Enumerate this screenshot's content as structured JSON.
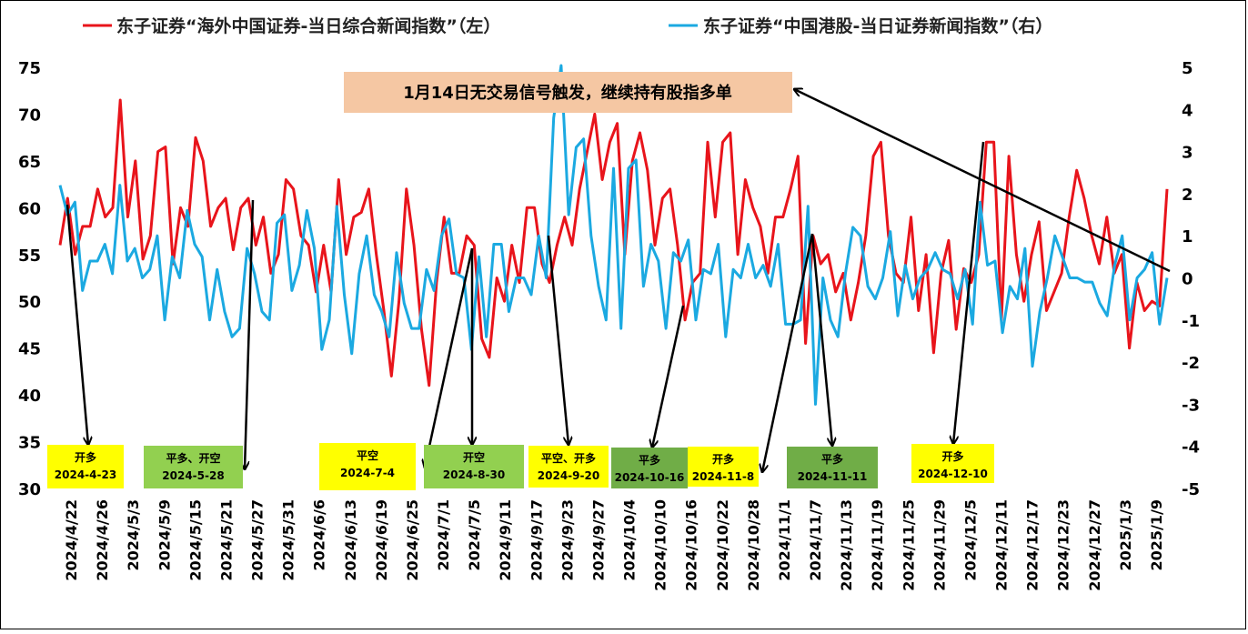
{
  "chart_data": {
    "type": "line",
    "legend": {
      "placement": "top",
      "entries": [
        {
          "label": "东子证券“海外中国证券-当日综合新闻指数”（左）",
          "color": "#e8141b"
        },
        {
          "label": "东子证券“中国港股-当日证券新闻指数”（右）",
          "color": "#1ba9e1"
        }
      ]
    },
    "y_left": {
      "min": 30,
      "max": 75,
      "ticks": [
        "30",
        "35",
        "40",
        "45",
        "50",
        "55",
        "60",
        "65",
        "70",
        "75"
      ]
    },
    "y_right": {
      "min": -5,
      "max": 5,
      "ticks": [
        "-5",
        "-4",
        "-3",
        "-2",
        "-1",
        "0",
        "1",
        "2",
        "3",
        "4",
        "5"
      ]
    },
    "x_labels": [
      "2024/4/22",
      "2024/4/26",
      "2024/5/3",
      "2024/5/9",
      "2024/5/15",
      "2024/5/21",
      "2024/5/27",
      "2024/5/31",
      "2024/6/6",
      "2024/6/13",
      "2024/6/19",
      "2024/6/25",
      "2024/7/1",
      "2024/7/5",
      "2024/9/11",
      "2024/9/17",
      "2024/9/23",
      "2024/9/27",
      "2024/10/4",
      "2024/10/10",
      "2024/10/16",
      "2024/10/22",
      "2024/10/28",
      "2024/11/1",
      "2024/11/7",
      "2024/11/13",
      "2024/11/19",
      "2024/11/25",
      "2024/11/29",
      "2024/12/5",
      "2024/12/11",
      "2024/12/17",
      "2024/12/23",
      "2024/12/27",
      "2025/1/3",
      "2025/1/9"
    ],
    "series": [
      {
        "name": "东子证券“海外中国证券-当日综合新闻指数”（左）",
        "axis": "left",
        "color": "#e8141b",
        "values": [
          56,
          61,
          55,
          58,
          58,
          62,
          59,
          60,
          71.5,
          59,
          65,
          54.5,
          57,
          66,
          66.5,
          54,
          60,
          58,
          67.5,
          65,
          58,
          60,
          61,
          55.5,
          60,
          61,
          56,
          59,
          53,
          55,
          63,
          62,
          57,
          56,
          51,
          56,
          51,
          63,
          55,
          59,
          59.5,
          62,
          55,
          49,
          42,
          50,
          62,
          56,
          47,
          41,
          52,
          59,
          53,
          53,
          57,
          56,
          46,
          44,
          52.5,
          50,
          56,
          52,
          60,
          60,
          54,
          52,
          56,
          59,
          56,
          62,
          66,
          70,
          63,
          67,
          69,
          55,
          65,
          68,
          64,
          56,
          61,
          62,
          56,
          48,
          52,
          53,
          67,
          59,
          67,
          68,
          55,
          63,
          60,
          58,
          53,
          59,
          59,
          62,
          65.5,
          45.5,
          57,
          54,
          55,
          51,
          53,
          48,
          52,
          57,
          65.5,
          67,
          57,
          53,
          52,
          59,
          49,
          55,
          44.5,
          53,
          56.5,
          47,
          53.5,
          52,
          55,
          67,
          67,
          48,
          65.5,
          55,
          50,
          55,
          58.5,
          49,
          51,
          53,
          59,
          64,
          61,
          57,
          54,
          59,
          53,
          55,
          45,
          52,
          49,
          50,
          49.5,
          62
        ]
      },
      {
        "name": "东子证券“中国港股-当日证券新闻指数”（右）",
        "axis": "right",
        "color": "#1ba9e1",
        "values": [
          2.2,
          1.5,
          1.8,
          -0.3,
          0.4,
          0.4,
          0.8,
          0.1,
          2.2,
          0.4,
          0.7,
          0,
          0.2,
          1,
          -1,
          0.5,
          0,
          1.6,
          0.8,
          0.5,
          -1,
          0.2,
          -0.8,
          -1.4,
          -1.2,
          0.7,
          0.1,
          -0.8,
          -1,
          1.3,
          1.5,
          -0.3,
          0.3,
          1.6,
          0.7,
          -1.7,
          -1,
          1.7,
          -0.4,
          -1.8,
          0.1,
          1,
          -0.4,
          -0.8,
          -1.4,
          0.6,
          -0.6,
          -1.2,
          -1.2,
          0.2,
          -0.3,
          1,
          1.4,
          0.1,
          0,
          -1.7,
          0.5,
          -1.4,
          0.8,
          0.8,
          -0.8,
          0,
          0,
          -0.4,
          1,
          0,
          3.8,
          5.2,
          1.5,
          3.1,
          3.3,
          1,
          -0.2,
          -1,
          2.6,
          -1.2,
          2.6,
          2.8,
          -0.2,
          0.8,
          0.4,
          -1.2,
          0.6,
          0.4,
          0.9,
          -1,
          0.2,
          0.1,
          0.8,
          -1.4,
          0.2,
          0,
          0.8,
          0,
          0.3,
          -0.2,
          0.8,
          -1.1,
          -1.1,
          -1,
          1.7,
          -3,
          0,
          -1,
          -1.4,
          0.1,
          1.2,
          1,
          -0.2,
          -0.5,
          0,
          1.1,
          -0.9,
          0.3,
          -0.5,
          0,
          0.2,
          0.6,
          0.2,
          0.1,
          -0.5,
          0.2,
          -1.1,
          1.8,
          0.3,
          0.4,
          -1.3,
          -0.2,
          -0.5,
          0.7,
          -2.1,
          -0.8,
          0,
          1,
          0.5,
          0,
          0,
          -0.1,
          -0.1,
          -0.6,
          -0.9,
          0.3,
          1,
          -1,
          0,
          0.2,
          0.6,
          -1.1,
          0
        ]
      }
    ],
    "callout": {
      "text": "1月14日无交易信号触发，继续持有股指多单"
    },
    "signals": [
      {
        "action": "开多",
        "date": "2024-4-23",
        "color": "#ffff00"
      },
      {
        "action": "平多、开空",
        "date": "2024-5-28",
        "color": "#92d050"
      },
      {
        "action": "平空",
        "date": "2024-7-4",
        "color": "#ffff00"
      },
      {
        "action": "开空",
        "date": "2024-8-30",
        "color": "#92d050"
      },
      {
        "action": "平空、开多",
        "date": "2024-9-20",
        "color": "#ffff00"
      },
      {
        "action": "平多",
        "date": "2024-10-16",
        "color": "#70ad47"
      },
      {
        "action": "开多",
        "date": "2024-11-8",
        "color": "#ffff00"
      },
      {
        "action": "平多",
        "date": "2024-11-11",
        "color": "#70ad47"
      },
      {
        "action": "开多",
        "date": "2024-12-10",
        "color": "#ffff00"
      }
    ]
  }
}
